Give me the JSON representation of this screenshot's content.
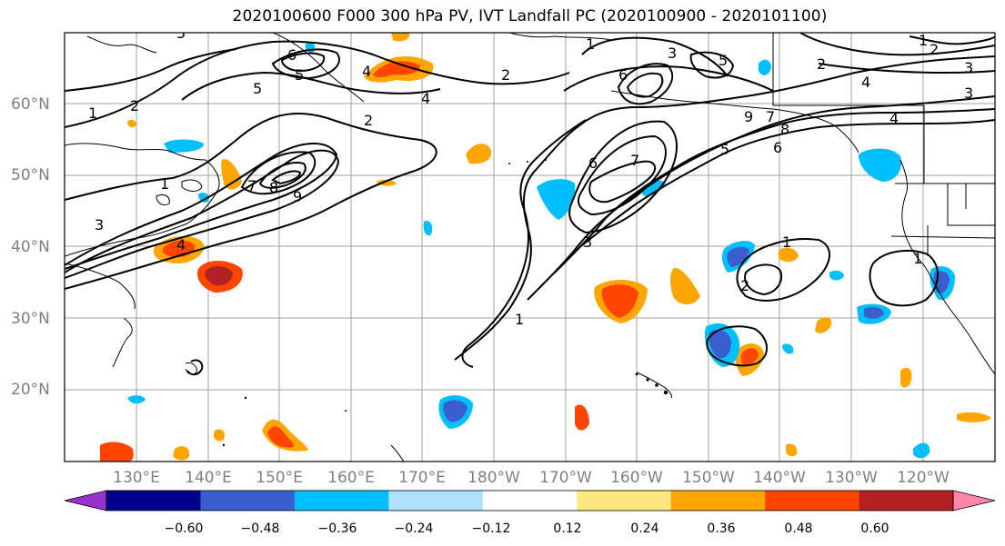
{
  "title": "2020100600 F000 300 hPa PV, IVT Landfall PC (2020100900 - 2020101100)",
  "map": {
    "lat_labels": [
      "60°N",
      "50°N",
      "40°N",
      "30°N",
      "20°N"
    ],
    "lon_labels": [
      "130°E",
      "140°E",
      "150°E",
      "160°E",
      "170°E",
      "180°W",
      "170°W",
      "160°W",
      "150°W",
      "140°W",
      "130°W",
      "120°W"
    ],
    "contour_labels": [
      "1",
      "2",
      "3",
      "4",
      "5",
      "6",
      "7",
      "8",
      "9",
      "1",
      "2",
      "3",
      "4",
      "5",
      "6",
      "7",
      "5",
      "6",
      "4",
      "3",
      "2",
      "1",
      "1",
      "2",
      "3",
      "4",
      "5",
      "6",
      "7",
      "8",
      "9",
      "1",
      "2",
      "3",
      "4",
      "5",
      "2",
      "1",
      "1"
    ]
  },
  "colorbar": {
    "ticks": [
      "−0.60",
      "−0.48",
      "−0.36",
      "−0.24",
      "−0.12",
      "0.12",
      "0.24",
      "0.36",
      "0.48",
      "0.60"
    ],
    "colors": [
      "#9932cc",
      "#00008b",
      "#3a5fcd",
      "#00bfff",
      "#b0e2ff",
      "#ffffff",
      "#ffe97f",
      "#ffa500",
      "#ff4500",
      "#b22222",
      "#ff88aa"
    ]
  },
  "colors": {
    "grid": "#a0a0a0",
    "contour": "#000000",
    "coast": "#000000"
  }
}
